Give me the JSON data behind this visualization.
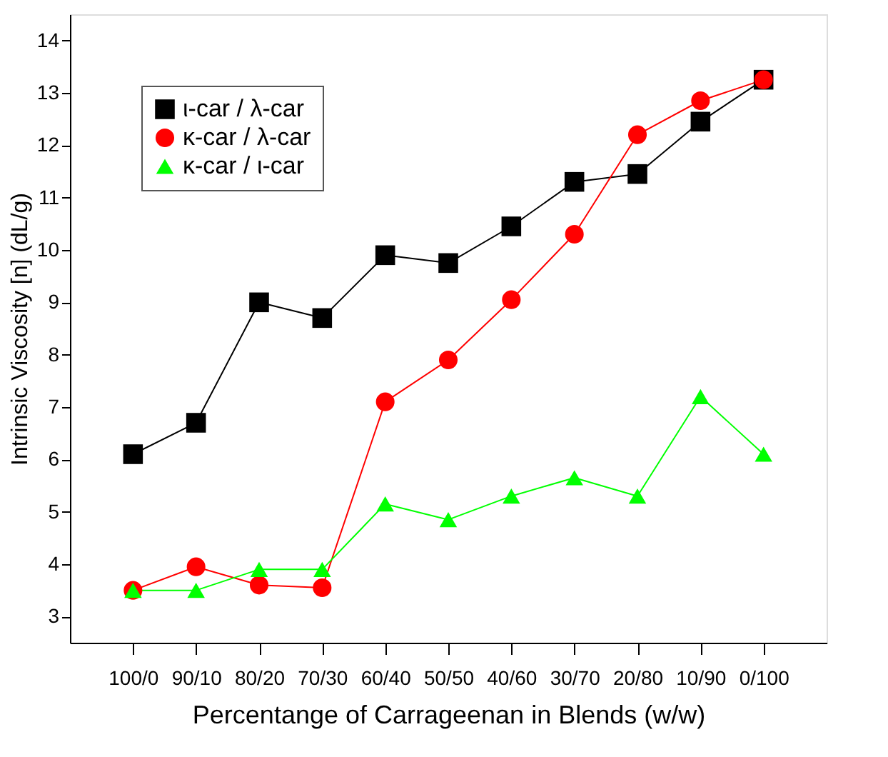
{
  "chart_data": {
    "type": "line",
    "xlabel": "Percentange of Carrageenan in Blends (w/w)",
    "ylabel": "Intrinsic Viscosity [n] (dL/g)",
    "categories": [
      "100/0",
      "90/10",
      "80/20",
      "70/30",
      "60/40",
      "50/50",
      "40/60",
      "30/70",
      "20/80",
      "10/90",
      "0/100"
    ],
    "series": [
      {
        "name": "ι-car / λ-car",
        "color": "#000000",
        "marker": "square",
        "values": [
          6.1,
          6.7,
          9.0,
          8.7,
          9.9,
          9.75,
          10.45,
          11.3,
          11.45,
          12.45,
          13.25
        ]
      },
      {
        "name": "κ-car / λ-car",
        "color": "#ff0000",
        "marker": "circle",
        "values": [
          3.5,
          3.95,
          3.6,
          3.55,
          7.1,
          7.9,
          9.05,
          10.3,
          12.2,
          12.85,
          13.25
        ]
      },
      {
        "name": "κ-car / ι-car",
        "color": "#00ff00",
        "marker": "triangle",
        "values": [
          3.5,
          3.5,
          3.9,
          3.9,
          5.15,
          4.85,
          5.3,
          5.65,
          5.3,
          7.2,
          6.1
        ]
      }
    ],
    "ylim": [
      2.5,
      14.5
    ],
    "yticks": [
      3,
      4,
      5,
      6,
      7,
      8,
      9,
      10,
      11,
      12,
      13,
      14
    ],
    "legend": "top left",
    "grid": false,
    "line_style": "solid"
  }
}
